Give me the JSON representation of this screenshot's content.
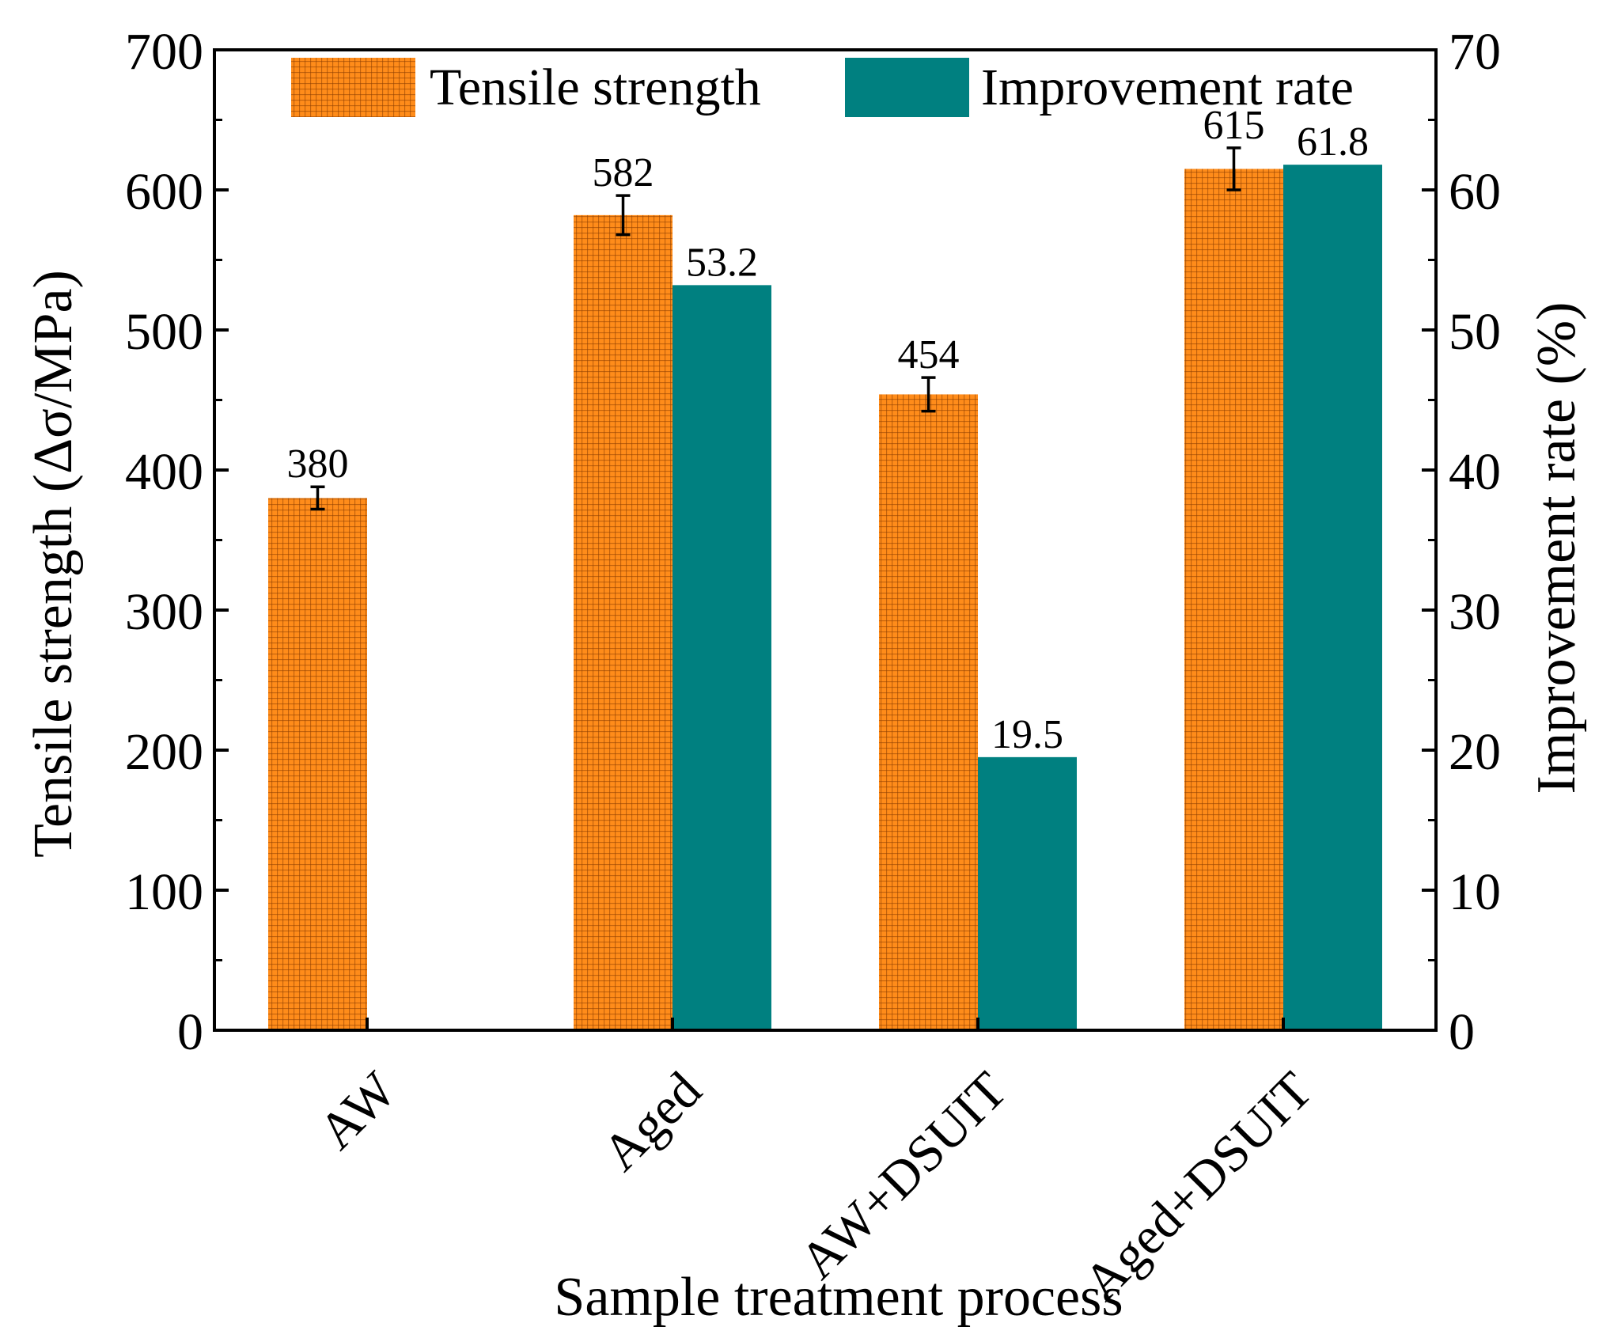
{
  "chart_data": {
    "type": "bar",
    "xlabel": "Sample treatment process",
    "ylabel_left": "Tensile strength (Δσ/MPa)",
    "ylabel_right": "Improvement rate (%)",
    "categories": [
      "AW",
      "Aged",
      "AW+DSUIT",
      "Aged+DSUIT"
    ],
    "left_axis": {
      "min": 0,
      "max": 700,
      "ticks": [
        "0",
        "100",
        "200",
        "300",
        "400",
        "500",
        "600",
        "700"
      ]
    },
    "right_axis": {
      "min": 0,
      "max": 70,
      "ticks": [
        "0",
        "10",
        "20",
        "30",
        "40",
        "50",
        "60",
        "70"
      ]
    },
    "series": [
      {
        "name": "Tensile strength",
        "axis": "left",
        "color": "#FF8C1A",
        "pattern": "grid",
        "values": [
          380,
          582,
          454,
          615
        ],
        "errors": [
          8,
          14,
          12,
          15
        ],
        "labels": [
          "380",
          "582",
          "454",
          "615"
        ]
      },
      {
        "name": "Improvement rate",
        "axis": "right",
        "color": "#008080",
        "values": [
          null,
          53.2,
          19.5,
          61.8
        ],
        "labels": [
          "",
          "53.2",
          "19.5",
          "61.8"
        ]
      }
    ],
    "legend_position": "top",
    "grid": false
  }
}
